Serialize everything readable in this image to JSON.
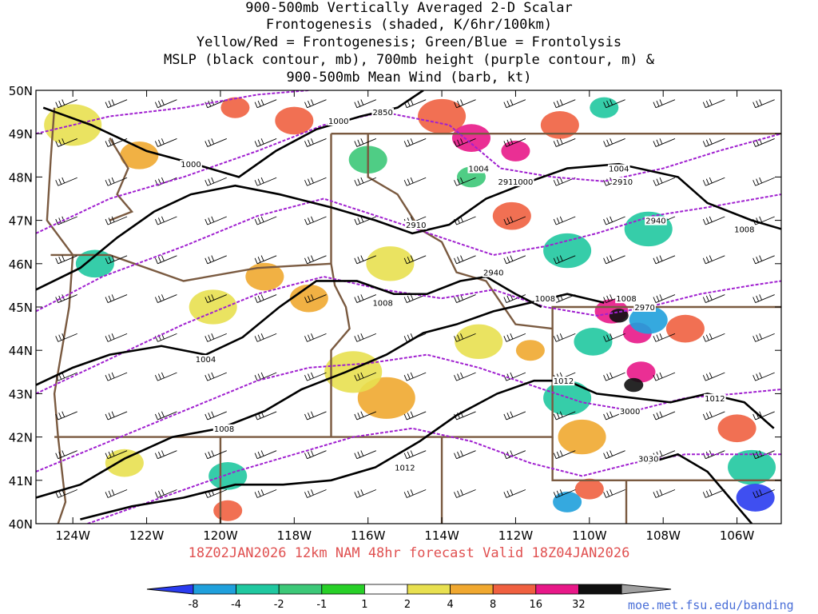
{
  "title_lines": [
    "900-500mb Vertically Averaged 2-D Scalar",
    "Frontogenesis (shaded, K/6hr/100km)",
    "Yellow/Red = Frontogenesis;  Green/Blue = Frontolysis",
    "MSLP (black contour, mb), 700mb height (purple contour, m) &",
    "900-500mb Mean Wind (barb, kt)"
  ],
  "subtitle": "18Z02JAN2026 12km NAM 48hr forecast Valid 18Z04JAN2026",
  "credit": "moe.met.fsu.edu/banding",
  "chart_data": {
    "type": "heatmap",
    "xlabel": "",
    "ylabel": "",
    "x_ticks": [
      "124W",
      "122W",
      "120W",
      "118W",
      "116W",
      "114W",
      "112W",
      "110W",
      "108W",
      "106W"
    ],
    "y_ticks": [
      "50N",
      "49N",
      "48N",
      "47N",
      "46N",
      "45N",
      "44N",
      "43N",
      "42N",
      "41N",
      "40N"
    ],
    "lon_range": [
      -125.0,
      -104.8
    ],
    "lat_range": [
      40,
      50
    ],
    "colorbar": {
      "labels": [
        "-8",
        "-4",
        "-2",
        "-1",
        "1",
        "2",
        "4",
        "8",
        "16",
        "32"
      ],
      "colors": [
        "#2a3cf0",
        "#1fa0dc",
        "#20c8a0",
        "#3cc878",
        "#28d028",
        "#ffffff",
        "#e8e050",
        "#f0a830",
        "#f06040",
        "#e81888",
        "#101010",
        "#a0a0a0"
      ]
    },
    "contour_labels": [
      {
        "text": "1000",
        "lon": -116.8,
        "lat": 49.3
      },
      {
        "text": "2850",
        "lon": -115.6,
        "lat": 49.5
      },
      {
        "text": "1000",
        "lon": -120.8,
        "lat": 48.3
      },
      {
        "text": "1004",
        "lon": -113.0,
        "lat": 48.2
      },
      {
        "text": "2910",
        "lon": -112.2,
        "lat": 47.9
      },
      {
        "text": "1000",
        "lon": -111.8,
        "lat": 47.9
      },
      {
        "text": "1004",
        "lon": -109.2,
        "lat": 48.2
      },
      {
        "text": "2910",
        "lon": -109.1,
        "lat": 47.9
      },
      {
        "text": "2910",
        "lon": -114.7,
        "lat": 46.9
      },
      {
        "text": "2940",
        "lon": -108.2,
        "lat": 47.0
      },
      {
        "text": "1008",
        "lon": -105.8,
        "lat": 46.8
      },
      {
        "text": "2940",
        "lon": -112.6,
        "lat": 45.8
      },
      {
        "text": "1008",
        "lon": -115.6,
        "lat": 45.1
      },
      {
        "text": "1008",
        "lon": -111.2,
        "lat": 45.2
      },
      {
        "text": "1008",
        "lon": -109.0,
        "lat": 45.2
      },
      {
        "text": "2970",
        "lon": -108.5,
        "lat": 45.0
      },
      {
        "text": "1004",
        "lon": -120.4,
        "lat": 43.8
      },
      {
        "text": "1012",
        "lon": -110.7,
        "lat": 43.3
      },
      {
        "text": "1012",
        "lon": -106.6,
        "lat": 42.9
      },
      {
        "text": "3000",
        "lon": -108.9,
        "lat": 42.6
      },
      {
        "text": "1008",
        "lon": -119.9,
        "lat": 42.2
      },
      {
        "text": "1012",
        "lon": -115.0,
        "lat": 41.3
      },
      {
        "text": "3030",
        "lon": -108.4,
        "lat": 41.5
      }
    ],
    "mslp_contours": [
      {
        "label": "1000",
        "points": [
          [
            -124.8,
            49.6
          ],
          [
            -123.5,
            49.2
          ],
          [
            -122,
            48.6
          ],
          [
            -120.7,
            48.3
          ],
          [
            -119.5,
            48.0
          ],
          [
            -118.5,
            48.6
          ],
          [
            -117.4,
            49.1
          ],
          [
            -116.2,
            49.4
          ],
          [
            -115.2,
            49.6
          ],
          [
            -114.5,
            50.0
          ]
        ]
      },
      {
        "label": "1004",
        "points": [
          [
            -125,
            45.4
          ],
          [
            -123.8,
            45.9
          ],
          [
            -122.8,
            46.6
          ],
          [
            -121.8,
            47.2
          ],
          [
            -120.8,
            47.6
          ],
          [
            -119.6,
            47.8
          ],
          [
            -118.4,
            47.6
          ],
          [
            -117.0,
            47.3
          ],
          [
            -115.8,
            47.0
          ],
          [
            -114.8,
            46.7
          ],
          [
            -113.8,
            46.9
          ],
          [
            -112.8,
            47.5
          ],
          [
            -111.6,
            47.9
          ],
          [
            -110.6,
            48.2
          ],
          [
            -109.2,
            48.3
          ],
          [
            -107.6,
            48.0
          ],
          [
            -106.8,
            47.4
          ],
          [
            -105.6,
            47.0
          ],
          [
            -104.8,
            46.8
          ]
        ]
      },
      {
        "label": "1004b",
        "points": [
          [
            -125,
            43.2
          ],
          [
            -124,
            43.6
          ],
          [
            -123,
            43.9
          ],
          [
            -121.6,
            44.1
          ],
          [
            -120.4,
            43.9
          ],
          [
            -119.4,
            44.3
          ],
          [
            -118.4,
            45.0
          ],
          [
            -117.4,
            45.6
          ],
          [
            -116.3,
            45.6
          ],
          [
            -115.3,
            45.3
          ],
          [
            -114.4,
            45.3
          ],
          [
            -113.5,
            45.6
          ],
          [
            -112.8,
            45.7
          ],
          [
            -112.0,
            45.3
          ],
          [
            -111.3,
            45.0
          ]
        ]
      },
      {
        "label": "1008",
        "points": [
          [
            -125,
            40.6
          ],
          [
            -123.8,
            40.9
          ],
          [
            -122.6,
            41.5
          ],
          [
            -121.3,
            42.0
          ],
          [
            -120.0,
            42.2
          ],
          [
            -118.8,
            42.6
          ],
          [
            -117.8,
            43.1
          ],
          [
            -116.6,
            43.5
          ],
          [
            -115.5,
            43.9
          ],
          [
            -114.5,
            44.4
          ],
          [
            -113.6,
            44.6
          ],
          [
            -112.6,
            44.9
          ],
          [
            -111.6,
            45.1
          ],
          [
            -110.6,
            45.3
          ],
          [
            -109.6,
            45.1
          ]
        ]
      },
      {
        "label": "1012",
        "points": [
          [
            -123.8,
            40.1
          ],
          [
            -122.4,
            40.4
          ],
          [
            -121.0,
            40.6
          ],
          [
            -119.6,
            40.9
          ],
          [
            -118.3,
            40.9
          ],
          [
            -117.0,
            41.0
          ],
          [
            -115.8,
            41.3
          ],
          [
            -114.6,
            41.9
          ],
          [
            -113.6,
            42.5
          ],
          [
            -112.5,
            43.0
          ],
          [
            -111.5,
            43.3
          ],
          [
            -110.6,
            43.3
          ],
          [
            -109.8,
            43.0
          ],
          [
            -108.8,
            42.9
          ],
          [
            -107.8,
            42.8
          ],
          [
            -106.8,
            43.0
          ],
          [
            -105.8,
            42.8
          ],
          [
            -105.0,
            42.2
          ]
        ]
      },
      {
        "label": "1012b",
        "points": [
          [
            -105.6,
            40.0
          ],
          [
            -106.2,
            40.6
          ],
          [
            -106.8,
            41.2
          ],
          [
            -107.6,
            41.6
          ],
          [
            -108.4,
            41.4
          ]
        ]
      }
    ],
    "height_contours": [
      {
        "label": "2850",
        "points": [
          [
            -125,
            49.0
          ],
          [
            -123.0,
            49.4
          ],
          [
            -121.0,
            49.6
          ],
          [
            -119.0,
            49.9
          ],
          [
            -117.6,
            50.0
          ]
        ]
      },
      {
        "label": "2910",
        "points": [
          [
            -125,
            46.7
          ],
          [
            -123.0,
            47.5
          ],
          [
            -121.0,
            48.0
          ],
          [
            -119.0,
            48.6
          ],
          [
            -117.2,
            49.2
          ],
          [
            -115.6,
            49.5
          ],
          [
            -113.8,
            49.2
          ],
          [
            -112.4,
            48.2
          ],
          [
            -111.0,
            48.0
          ],
          [
            -109.6,
            47.9
          ],
          [
            -108.0,
            48.2
          ],
          [
            -106.5,
            48.6
          ],
          [
            -104.8,
            49.0
          ]
        ]
      },
      {
        "label": "2940",
        "points": [
          [
            -125,
            44.9
          ],
          [
            -123.2,
            45.7
          ],
          [
            -121.0,
            46.4
          ],
          [
            -119.0,
            47.1
          ],
          [
            -117.2,
            47.5
          ],
          [
            -115.4,
            47.0
          ],
          [
            -114.0,
            46.6
          ],
          [
            -112.6,
            46.2
          ],
          [
            -111.2,
            46.4
          ],
          [
            -109.8,
            46.7
          ],
          [
            -108.3,
            47.1
          ],
          [
            -106.8,
            47.3
          ],
          [
            -104.8,
            47.6
          ]
        ]
      },
      {
        "label": "2970",
        "points": [
          [
            -125,
            43.0
          ],
          [
            -123.0,
            43.8
          ],
          [
            -121.0,
            44.6
          ],
          [
            -119.0,
            45.3
          ],
          [
            -117.2,
            45.7
          ],
          [
            -115.6,
            45.4
          ],
          [
            -114.0,
            45.2
          ],
          [
            -112.6,
            45.4
          ],
          [
            -111.2,
            45.0
          ],
          [
            -109.8,
            44.8
          ],
          [
            -108.4,
            45.0
          ],
          [
            -107.0,
            45.3
          ],
          [
            -105.6,
            45.5
          ],
          [
            -104.8,
            45.6
          ]
        ]
      },
      {
        "label": "3000",
        "points": [
          [
            -125,
            41.2
          ],
          [
            -123.0,
            41.9
          ],
          [
            -121.0,
            42.6
          ],
          [
            -119.0,
            43.3
          ],
          [
            -117.6,
            43.6
          ],
          [
            -116.0,
            43.7
          ],
          [
            -114.4,
            43.9
          ],
          [
            -113.0,
            43.6
          ],
          [
            -111.6,
            43.2
          ],
          [
            -110.2,
            42.8
          ],
          [
            -108.8,
            42.6
          ],
          [
            -107.4,
            42.9
          ],
          [
            -106.0,
            43.0
          ],
          [
            -104.8,
            43.1
          ]
        ]
      },
      {
        "label": "3030",
        "points": [
          [
            -123.6,
            40.0
          ],
          [
            -121.6,
            40.6
          ],
          [
            -119.6,
            41.2
          ],
          [
            -118.0,
            41.6
          ],
          [
            -116.4,
            42.0
          ],
          [
            -114.8,
            42.2
          ],
          [
            -113.2,
            41.9
          ],
          [
            -111.6,
            41.4
          ],
          [
            -110.2,
            41.1
          ],
          [
            -108.8,
            41.4
          ],
          [
            -107.4,
            41.6
          ],
          [
            -106.0,
            41.6
          ],
          [
            -104.8,
            41.6
          ]
        ]
      }
    ],
    "shaded_regions": [
      {
        "level": "2",
        "lon": -124.0,
        "lat": 49.2,
        "r": 0.6
      },
      {
        "level": "4",
        "lon": -122.2,
        "lat": 48.5,
        "r": 0.4
      },
      {
        "level": "8",
        "lon": -118.0,
        "lat": 49.3,
        "r": 0.4
      },
      {
        "level": "8",
        "lon": -119.6,
        "lat": 49.6,
        "r": 0.3
      },
      {
        "level": "8",
        "lon": -114.0,
        "lat": 49.4,
        "r": 0.5
      },
      {
        "level": "16",
        "lon": -113.2,
        "lat": 48.9,
        "r": 0.4
      },
      {
        "level": "16",
        "lon": -112.0,
        "lat": 48.6,
        "r": 0.3
      },
      {
        "level": "8",
        "lon": -110.8,
        "lat": 49.2,
        "r": 0.4
      },
      {
        "level": "-2",
        "lon": -109.6,
        "lat": 49.6,
        "r": 0.3
      },
      {
        "level": "-1",
        "lon": -113.2,
        "lat": 48.0,
        "r": 0.3
      },
      {
        "level": "-2",
        "lon": -110.6,
        "lat": 46.3,
        "r": 0.5
      },
      {
        "level": "-2",
        "lon": -108.4,
        "lat": 46.8,
        "r": 0.5
      },
      {
        "level": "8",
        "lon": -112.1,
        "lat": 47.1,
        "r": 0.4
      },
      {
        "level": "2",
        "lon": -115.4,
        "lat": 46.0,
        "r": 0.5
      },
      {
        "level": "4",
        "lon": -118.8,
        "lat": 45.7,
        "r": 0.4
      },
      {
        "level": "4",
        "lon": -117.6,
        "lat": 45.2,
        "r": 0.4
      },
      {
        "level": "2",
        "lon": -120.2,
        "lat": 45.0,
        "r": 0.5
      },
      {
        "level": "4",
        "lon": -115.5,
        "lat": 42.9,
        "r": 0.6
      },
      {
        "level": "2",
        "lon": -116.4,
        "lat": 43.5,
        "r": 0.6
      },
      {
        "level": "2",
        "lon": -113.0,
        "lat": 44.2,
        "r": 0.5
      },
      {
        "level": "4",
        "lon": -111.6,
        "lat": 44.0,
        "r": 0.3
      },
      {
        "level": "16",
        "lon": -109.4,
        "lat": 44.9,
        "r": 0.35
      },
      {
        "level": "32",
        "lon": -109.2,
        "lat": 44.8,
        "r": 0.2
      },
      {
        "level": "16",
        "lon": -108.7,
        "lat": 44.4,
        "r": 0.3
      },
      {
        "level": "-4",
        "lon": -108.4,
        "lat": 44.7,
        "r": 0.4
      },
      {
        "level": "-2",
        "lon": -109.9,
        "lat": 44.2,
        "r": 0.4
      },
      {
        "level": "8",
        "lon": -107.4,
        "lat": 44.5,
        "r": 0.4
      },
      {
        "level": "16",
        "lon": -108.6,
        "lat": 43.5,
        "r": 0.3
      },
      {
        "level": "32",
        "lon": -108.8,
        "lat": 43.2,
        "r": 0.2
      },
      {
        "level": "-2",
        "lon": -110.6,
        "lat": 42.9,
        "r": 0.5
      },
      {
        "level": "4",
        "lon": -110.2,
        "lat": 42.0,
        "r": 0.5
      },
      {
        "level": "8",
        "lon": -106.0,
        "lat": 42.2,
        "r": 0.4
      },
      {
        "level": "-2",
        "lon": -105.6,
        "lat": 41.3,
        "r": 0.5
      },
      {
        "level": "-8",
        "lon": -105.5,
        "lat": 40.6,
        "r": 0.4
      },
      {
        "level": "-4",
        "lon": -110.6,
        "lat": 40.5,
        "r": 0.3
      },
      {
        "level": "8",
        "lon": -110.0,
        "lat": 40.8,
        "r": 0.3
      },
      {
        "level": "-2",
        "lon": -119.8,
        "lat": 41.1,
        "r": 0.4
      },
      {
        "level": "2",
        "lon": -122.6,
        "lat": 41.4,
        "r": 0.4
      },
      {
        "level": "8",
        "lon": -119.8,
        "lat": 40.3,
        "r": 0.3
      },
      {
        "level": "-2",
        "lon": -123.4,
        "lat": 46.0,
        "r": 0.4
      },
      {
        "level": "-1",
        "lon": -116.0,
        "lat": 48.4,
        "r": 0.4
      }
    ]
  }
}
